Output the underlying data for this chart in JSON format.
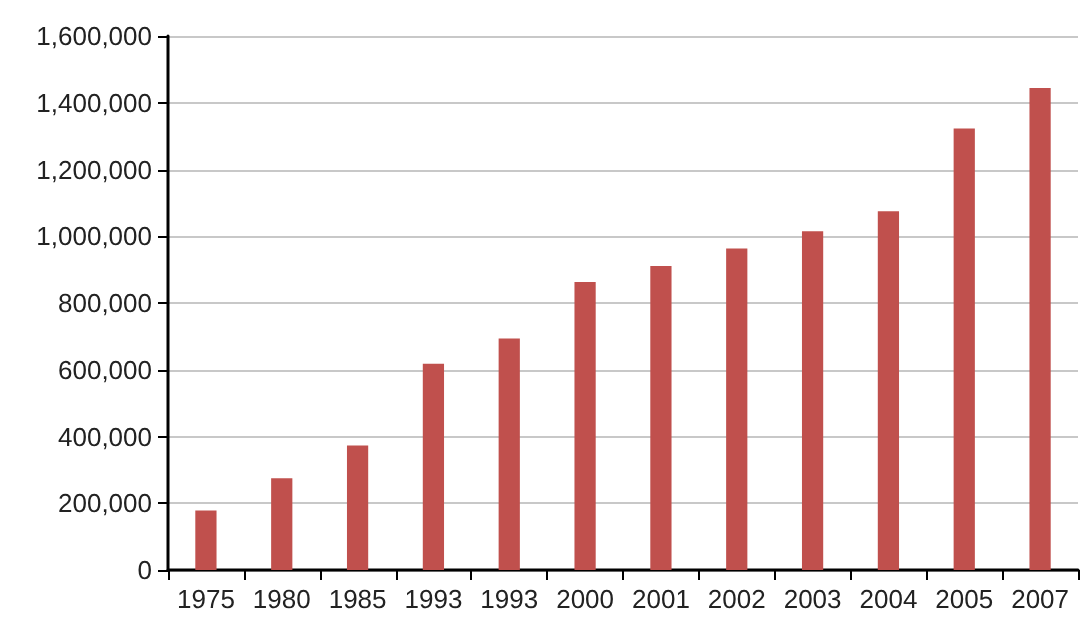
{
  "chart_data": {
    "type": "bar",
    "categories": [
      "1975",
      "1980",
      "1985",
      "1993",
      "1993",
      "2000",
      "2001",
      "2002",
      "2003",
      "2004",
      "2005",
      "2007"
    ],
    "values": [
      178000,
      275000,
      373000,
      618000,
      694000,
      863000,
      911000,
      963000,
      1015000,
      1075000,
      1323000,
      1444000
    ],
    "color": "#c0504d",
    "ylim": [
      0,
      1600000
    ],
    "yticks": [
      0,
      {
        "value": 200000,
        "label": "200,000"
      },
      {
        "value": 400000,
        "label": "400,000"
      },
      {
        "value": 600000,
        "label": "600,000"
      },
      {
        "value": 800000,
        "label": "800,000"
      },
      {
        "value": 1000000,
        "label": "1,000,000"
      },
      {
        "value": 1200000,
        "label": "1,200,000"
      },
      {
        "value": 1400000,
        "label": "1,400,000"
      },
      {
        "value": 1600000,
        "label": "1,600,000"
      }
    ],
    "grid": "y"
  }
}
